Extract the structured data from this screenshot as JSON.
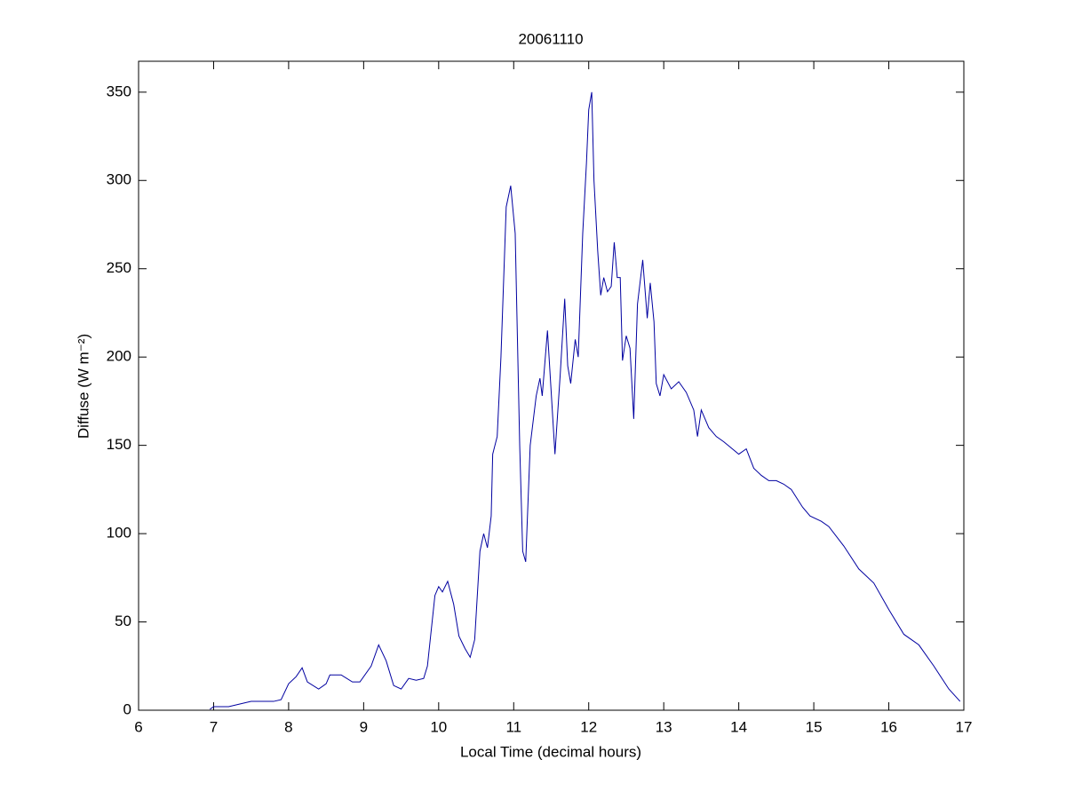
{
  "chart_data": {
    "type": "line",
    "title": "20061110",
    "xlabel": "Local Time (decimal hours)",
    "ylabel": "Diffuse (W m⁻²)",
    "xlim": [
      6,
      17
    ],
    "xticks": [
      6,
      7,
      8,
      9,
      10,
      11,
      12,
      13,
      14,
      15,
      16,
      17
    ],
    "ylim": [
      0,
      367.5
    ],
    "yticks": [
      0,
      50,
      100,
      150,
      200,
      250,
      300,
      350
    ],
    "grid": false,
    "series": [
      {
        "color": "#0000a0",
        "x": [
          6.95,
          7.0,
          7.2,
          7.4,
          7.5,
          7.6,
          7.8,
          7.9,
          8.0,
          8.1,
          8.18,
          8.25,
          8.4,
          8.5,
          8.55,
          8.7,
          8.85,
          8.95,
          9.1,
          9.2,
          9.3,
          9.4,
          9.5,
          9.6,
          9.7,
          9.8,
          9.85,
          9.95,
          10.0,
          10.05,
          10.12,
          10.2,
          10.27,
          10.35,
          10.42,
          10.48,
          10.55,
          10.6,
          10.65,
          10.7,
          10.72,
          10.78,
          10.83,
          10.9,
          10.96,
          11.02,
          11.08,
          11.12,
          11.16,
          11.22,
          11.3,
          11.35,
          11.38,
          11.45,
          11.5,
          11.55,
          11.62,
          11.68,
          11.72,
          11.76,
          11.82,
          11.86,
          11.92,
          11.97,
          12.0,
          12.04,
          12.07,
          12.12,
          12.16,
          12.2,
          12.25,
          12.3,
          12.34,
          12.38,
          12.42,
          12.45,
          12.5,
          12.55,
          12.6,
          12.65,
          12.72,
          12.78,
          12.82,
          12.87,
          12.9,
          12.95,
          13.0,
          13.1,
          13.2,
          13.3,
          13.4,
          13.45,
          13.5,
          13.6,
          13.7,
          13.8,
          14.0,
          14.1,
          14.2,
          14.3,
          14.4,
          14.5,
          14.6,
          14.7,
          14.85,
          14.95,
          15.1,
          15.2,
          15.4,
          15.6,
          15.8,
          16.0,
          16.2,
          16.4,
          16.6,
          16.8,
          16.95
        ],
        "values": [
          0.5,
          2,
          2,
          4,
          5,
          5,
          5,
          6,
          15,
          19,
          24,
          16,
          12,
          15,
          20,
          20,
          16,
          16,
          25,
          37,
          28,
          14,
          12,
          18,
          17,
          18,
          25,
          65,
          70,
          67,
          73,
          60,
          42,
          35,
          30,
          40,
          90,
          100,
          92,
          110,
          145,
          155,
          200,
          285,
          297,
          270,
          150,
          90,
          84,
          150,
          178,
          188,
          178,
          215,
          180,
          145,
          190,
          233,
          195,
          185,
          210,
          200,
          270,
          310,
          340,
          350,
          300,
          260,
          235,
          245,
          237,
          240,
          265,
          245,
          245,
          198,
          212,
          205,
          165,
          230,
          255,
          222,
          242,
          220,
          185,
          178,
          190,
          182,
          186,
          180,
          170,
          155,
          170,
          160,
          155,
          152,
          145,
          148,
          137,
          133,
          130,
          130,
          128,
          125,
          115,
          110,
          107,
          104,
          93,
          80,
          72,
          57,
          43,
          37,
          25,
          12,
          5
        ]
      }
    ]
  }
}
